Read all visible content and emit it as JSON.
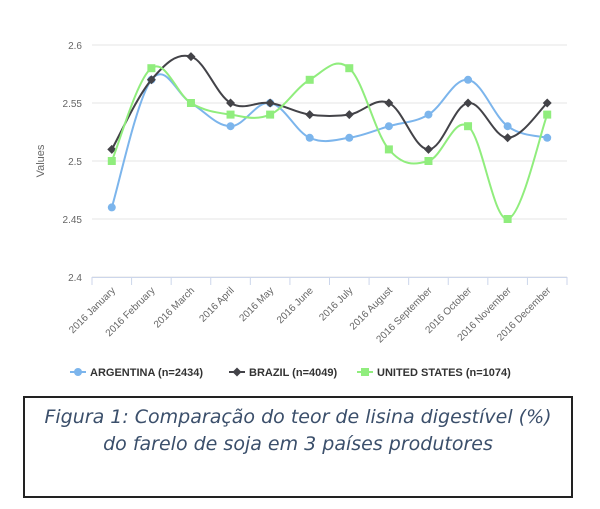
{
  "chart_data": {
    "type": "line",
    "title": "",
    "xlabel": "",
    "ylabel": "Values",
    "ylim": [
      2.4,
      2.6
    ],
    "yticks": [
      2.4,
      2.45,
      2.5,
      2.55,
      2.6
    ],
    "ytick_labels": [
      "2.4",
      "2.45",
      "2.5",
      "2.55",
      "2.6"
    ],
    "categories": [
      "2016 January",
      "2016 February",
      "2016 March",
      "2016 April",
      "2016 May",
      "2016 June",
      "2016 July",
      "2016 August",
      "2016 September",
      "2016 October",
      "2016 November",
      "2016 December"
    ],
    "grid": true,
    "legend": "bottom",
    "series": [
      {
        "name": "ARGENTINA (n=2434)",
        "color": "#7cb5ec",
        "marker": "circle",
        "values": [
          2.46,
          2.57,
          2.55,
          2.53,
          2.55,
          2.52,
          2.52,
          2.53,
          2.54,
          2.57,
          2.53,
          2.52
        ]
      },
      {
        "name": "BRAZIL (n=4049)",
        "color": "#434348",
        "marker": "diamond",
        "values": [
          2.51,
          2.57,
          2.59,
          2.55,
          2.55,
          2.54,
          2.54,
          2.55,
          2.51,
          2.55,
          2.52,
          2.55
        ]
      },
      {
        "name": "UNITED STATES (n=1074)",
        "color": "#90ed7d",
        "marker": "square",
        "values": [
          2.5,
          2.58,
          2.55,
          2.54,
          2.54,
          2.57,
          2.58,
          2.51,
          2.5,
          2.53,
          2.45,
          2.54
        ]
      }
    ]
  },
  "caption": {
    "line1": "Figura 1: Comparação do teor de lisina digestível (%)",
    "line2": "do farelo de soja em 3 países produtores"
  }
}
